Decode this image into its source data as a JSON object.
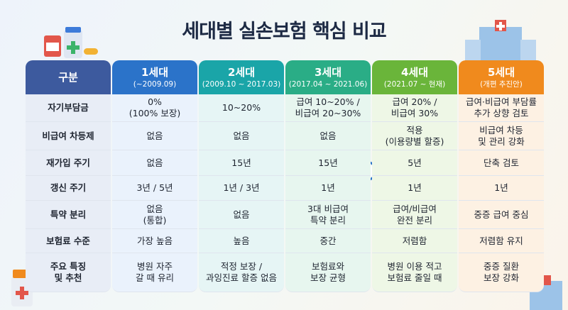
{
  "header": {
    "title": "세대별 실손보험 핵심 비교"
  },
  "table": {
    "columns": [
      {
        "name": "구분",
        "period": null
      },
      {
        "name": "1세대",
        "period": "(~2009.09)"
      },
      {
        "name": "2세대",
        "period": "(2009.10 ~ 2017.03)"
      },
      {
        "name": "3세대",
        "period": "(2017.04 ~ 2021.06)"
      },
      {
        "name": "4세대",
        "period": "(2021.07 ~ 현재)"
      },
      {
        "name": "5세대",
        "period": "(개편 추진안)"
      }
    ],
    "rows": [
      [
        [
          "자기부담금"
        ],
        [
          "0%",
          "(100% 보장)"
        ],
        [
          "10~20%"
        ],
        [
          "급여 10~20% /",
          "비급여 20~30%"
        ],
        [
          "급여 20% /",
          "비급여 30%"
        ],
        [
          "급여·비급여 부담률",
          "추가 상향 검토"
        ]
      ],
      [
        [
          "비급여 차등제"
        ],
        [
          "없음"
        ],
        [
          "없음"
        ],
        [
          "없음"
        ],
        [
          "적용",
          "(이용량별 할증)"
        ],
        [
          "비급여 차등",
          "및 관리 강화"
        ]
      ],
      [
        [
          "재가입 주기"
        ],
        [
          "없음"
        ],
        [
          "15년"
        ],
        [
          "15년"
        ],
        [
          "5년"
        ],
        [
          "단축 검토"
        ]
      ],
      [
        [
          "갱신 주기"
        ],
        [
          "3년 / 5년"
        ],
        [
          "1년 / 3년"
        ],
        [
          "1년"
        ],
        [
          "1년"
        ],
        [
          "1년"
        ]
      ],
      [
        [
          "특약 분리"
        ],
        [
          "없음",
          "(통합)"
        ],
        [
          "없음"
        ],
        [
          "3대 비급여",
          "특약 분리"
        ],
        [
          "급여/비급여",
          "완전 분리"
        ],
        [
          "중증 급여 중심"
        ]
      ],
      [
        [
          "보험료 수준"
        ],
        [
          "가장 높음"
        ],
        [
          "높음"
        ],
        [
          "중간"
        ],
        [
          "저렴함"
        ],
        [
          "저렴함 유지"
        ]
      ],
      [
        [
          "주요 특징",
          "및 추천"
        ],
        [
          "병원 자주",
          "갈 때 유리"
        ],
        [
          "적정 보장 /",
          "과잉진료 할증 없음"
        ],
        [
          "보험료와",
          "보장 균형"
        ],
        [
          "병원 이용 적고",
          "보험료 줄일 때"
        ],
        [
          "중증 질환",
          "보장 강화"
        ]
      ]
    ]
  }
}
